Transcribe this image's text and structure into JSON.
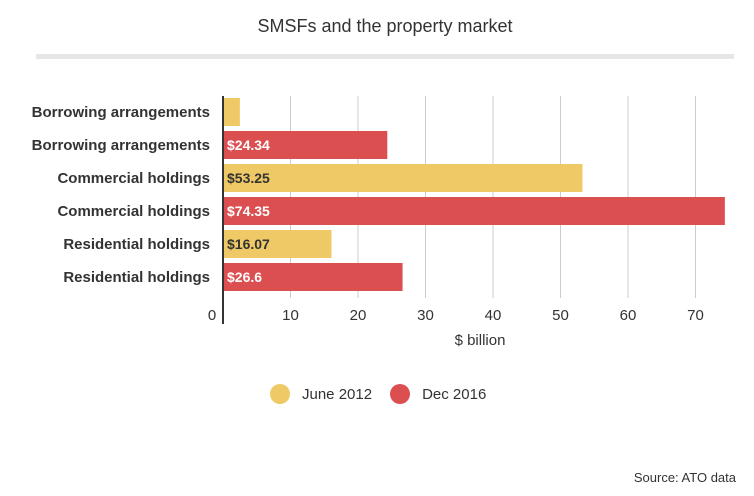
{
  "title": "SMSFs and the property market",
  "source": "Source: ATO data",
  "colors": {
    "june": "#eec965",
    "dec": "#dc4f51",
    "grid": "#cccccc",
    "axis": "#333333"
  },
  "chart_data": {
    "type": "bar",
    "orientation": "horizontal",
    "title": "SMSFs and the property market",
    "xlabel": "$ billion",
    "ylabel": "",
    "xlim": [
      0,
      75
    ],
    "xticks": [
      0,
      10,
      20,
      30,
      40,
      50,
      60,
      70
    ],
    "grid": true,
    "legend_position": "bottom",
    "legend": [
      "June 2012",
      "Dec 2016"
    ],
    "rows": [
      {
        "category": "Borrowing arrangements",
        "series": "June 2012",
        "value": 2.5,
        "label": ""
      },
      {
        "category": "Borrowing arrangements",
        "series": "Dec 2016",
        "value": 24.34,
        "label": "$24.34"
      },
      {
        "category": "Commercial holdings",
        "series": "June 2012",
        "value": 53.25,
        "label": "$53.25"
      },
      {
        "category": "Commercial holdings",
        "series": "Dec 2016",
        "value": 74.35,
        "label": "$74.35"
      },
      {
        "category": "Residential holdings",
        "series": "June 2012",
        "value": 16.07,
        "label": "$16.07"
      },
      {
        "category": "Residential holdings",
        "series": "Dec 2016",
        "value": 26.6,
        "label": "$26.6"
      }
    ]
  }
}
